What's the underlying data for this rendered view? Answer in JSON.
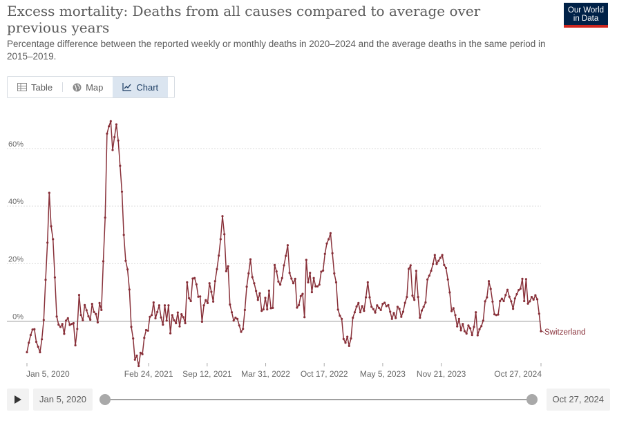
{
  "header": {
    "title": "Excess mortality: Deaths from all causes compared to average over previous years",
    "subtitle": "Percentage difference between the reported weekly or monthly deaths in 2020–2024 and the average deaths in the same period in 2015–2019.",
    "logo_line1": "Our World",
    "logo_line2": "in Data"
  },
  "tabs": [
    {
      "label": "Table",
      "icon": "table-icon",
      "active": false
    },
    {
      "label": "Map",
      "icon": "globe-icon",
      "active": false
    },
    {
      "label": "Chart",
      "icon": "line-chart-icon",
      "active": true
    }
  ],
  "timeline": {
    "start_label": "Jan 5, 2020",
    "end_label": "Oct 27, 2024",
    "start_value": 0,
    "end_value": 1
  },
  "colors": {
    "series": "#883039",
    "grid": "#dddddd",
    "zero_line": "#a1a1a1",
    "axis_text": "#666666"
  },
  "chart_data": {
    "type": "line",
    "title": "",
    "xlabel": "",
    "ylabel": "",
    "x_unit": "days since Jan 5, 2020",
    "ylim": [
      -15,
      72
    ],
    "yticks": [
      0,
      20,
      40,
      60
    ],
    "ytick_labels": [
      "0%",
      "20%",
      "40%",
      "60%"
    ],
    "xticks": [
      {
        "label": "Jan 5, 2020",
        "day": 0
      },
      {
        "label": "Feb 24, 2021",
        "day": 416
      },
      {
        "label": "Sep 12, 2021",
        "day": 616
      },
      {
        "label": "Mar 31, 2022",
        "day": 816
      },
      {
        "label": "Oct 17, 2022",
        "day": 1016
      },
      {
        "label": "May 5, 2023",
        "day": 1216
      },
      {
        "label": "Nov 21, 2023",
        "day": 1416
      },
      {
        "label": "Oct 27, 2024",
        "day": 1757
      }
    ],
    "grid": true,
    "legend": "right-end-label",
    "series": [
      {
        "name": "Switzerland",
        "values": [
          -10.8,
          -7.5,
          -4.8,
          -2.9,
          -2.8,
          -7.2,
          -8.9,
          -10.8,
          -6.3,
          0.4,
          14.4,
          27.3,
          44.6,
          33.0,
          28.5,
          15.2,
          1.6,
          -1.2,
          -2.0,
          -1.0,
          -4.4,
          0.2,
          1.0,
          -1.3,
          -1.0,
          -0.7,
          -8.4,
          -2.7,
          9.1,
          2.1,
          0.3,
          5.6,
          3.8,
          1.7,
          0.5,
          6.0,
          3.2,
          2.5,
          -0.4,
          6.3,
          3.9,
          20.8,
          36.0,
          65.2,
          67.7,
          69.5,
          59.5,
          64.0,
          68.4,
          62.8,
          54.0,
          45.0,
          30.0,
          21.0,
          18.0,
          11.0,
          -2.0,
          -6.0,
          -13.4,
          -12.0,
          -15.6,
          -11.0,
          -11.5,
          -5.8,
          -3.1,
          -3.3,
          1.5,
          2.1,
          6.5,
          1.0,
          3.2,
          5.5,
          1.3,
          -1.2,
          5.5,
          0.2,
          5.5,
          -4.2,
          2.1,
          0.3,
          -0.7,
          3.0,
          -1.8,
          2.4,
          1.4,
          -0.7,
          13.5,
          8.0,
          7.0,
          14.8,
          15.0,
          12.8,
          8.5,
          8.6,
          -0.2,
          5.5,
          7.3,
          6.3,
          13.2,
          10.2,
          6.8,
          13.9,
          18.1,
          22.8,
          28.5,
          36.5,
          30.2,
          17.4,
          19.1,
          5.8,
          3.1,
          0.2,
          1.2,
          0.8,
          -1.5,
          -3.7,
          -2.7,
          3.9,
          12.0,
          16.6,
          21.5,
          15.3,
          13.2,
          10.5,
          7.4,
          9.7,
          3.6,
          4.1,
          8.1,
          4.1,
          10.6,
          4.5,
          4.6,
          19.5,
          17.3,
          13.8,
          12.7,
          15.0,
          19.4,
          22.7,
          26.4,
          16.8,
          14.8,
          13.2,
          14.7,
          4.7,
          5.6,
          8.7,
          9.5,
          1.4,
          21.3,
          13.5,
          16.8,
          10.1,
          15.0,
          12.1,
          12.1,
          12.7,
          17.2,
          17.6,
          23.4,
          27.0,
          28.5,
          30.6,
          23.6,
          16.6,
          13.5,
          4.0,
          1.9,
          0.8,
          -6.2,
          -7.5,
          -5.4,
          -8.6,
          -6.0,
          1.2,
          3.1,
          5.1,
          6.3,
          3.1,
          5.2,
          3.6,
          8.3,
          13.5,
          8.3,
          5.0,
          4.2,
          3.0,
          5.5,
          4.6,
          3.9,
          6.0,
          6.4,
          5.2,
          5.6,
          3.3,
          0.8,
          2.8,
          1.1,
          5.0,
          4.3,
          1.5,
          3.3,
          6.4,
          8.4,
          18.2,
          19.4,
          8.9,
          7.4,
          17.5,
          8.4,
          1.2,
          3.7,
          5.0,
          6.5,
          14.5,
          15.8,
          17.5,
          19.9,
          23.0,
          19.9,
          21.0,
          22.0,
          23.0,
          19.5,
          18.5,
          14.5,
          10.0,
          3.5,
          4.5,
          2.1,
          -1.8,
          0.8,
          -3.2,
          -1.0,
          -3.5,
          -4.3,
          -1.5,
          -2.5,
          -4.8,
          -2.0,
          3.1,
          -4.9,
          -2.8,
          -1.7,
          0.2,
          6.9,
          8.3,
          13.9,
          11.2,
          6.8,
          2.4,
          2.1,
          2.3,
          7.0,
          7.8,
          7.0,
          9.1,
          10.9,
          8.5,
          6.9,
          4.3,
          7.9,
          9.4,
          10.8,
          11.3,
          14.7,
          7.0,
          14.6,
          6.1,
          6.9,
          8.4,
          7.5,
          9.0,
          7.6,
          2.6,
          -3.5
        ]
      }
    ]
  }
}
